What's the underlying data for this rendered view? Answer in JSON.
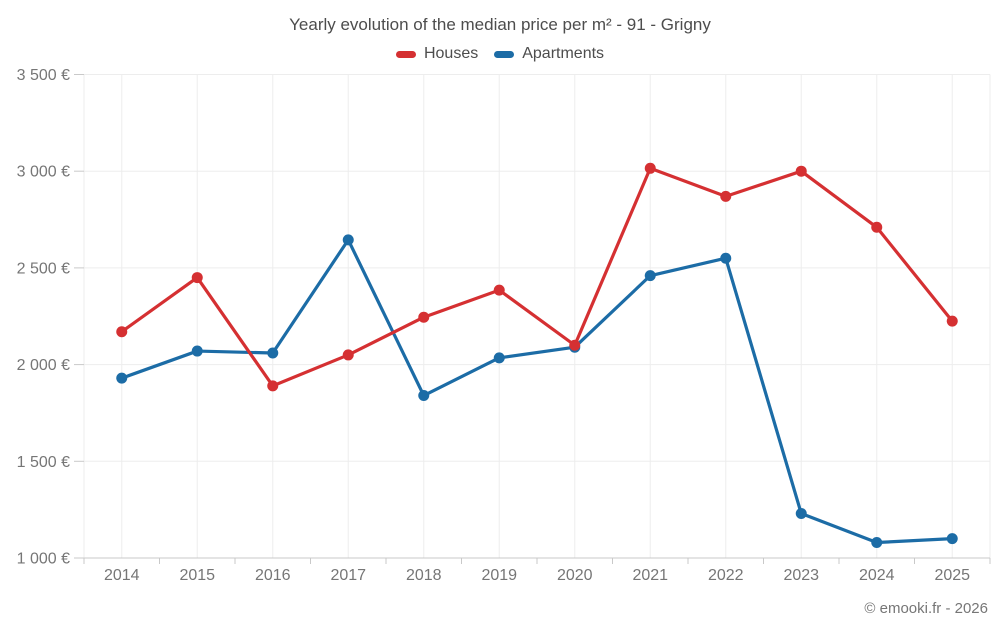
{
  "footer": "© emooki.fr - 2026",
  "colors": {
    "background": "#ffffff",
    "grid": "#ededed",
    "axis": "#c9c9c9",
    "tick_text": "#767676",
    "title_text": "#4d4d4d",
    "legend_text": "#4d4d4d",
    "footer_text": "#767676",
    "houses": "#d53032",
    "apartments": "#1c6ca6"
  },
  "chart_data": {
    "type": "line",
    "title": "Yearly evolution of the median price per m² - 91 - Grigny",
    "xlabel": "",
    "ylabel": "",
    "categories": [
      "2014",
      "2015",
      "2016",
      "2017",
      "2018",
      "2019",
      "2020",
      "2021",
      "2022",
      "2023",
      "2024",
      "2025"
    ],
    "series": [
      {
        "name": "Houses",
        "color": "#d53032",
        "values": [
          2170,
          2450,
          1890,
          2050,
          2245,
          2385,
          2100,
          3015,
          2870,
          3000,
          2710,
          2225
        ]
      },
      {
        "name": "Apartments",
        "color": "#1c6ca6",
        "values": [
          1930,
          2070,
          2060,
          2645,
          1840,
          2035,
          2090,
          2460,
          2550,
          1230,
          1080,
          1100
        ]
      }
    ],
    "ylim": [
      1000,
      3500
    ],
    "yticks": [
      {
        "value": 3500,
        "label": "3 500 €"
      },
      {
        "value": 3000,
        "label": "3 000 €"
      },
      {
        "value": 2500,
        "label": "2 500 €"
      },
      {
        "value": 2000,
        "label": "2 000 €"
      },
      {
        "value": 1500,
        "label": "1 500 €"
      },
      {
        "value": 1000,
        "label": "1 000 €"
      }
    ],
    "grid": true,
    "legend_position": "top"
  }
}
